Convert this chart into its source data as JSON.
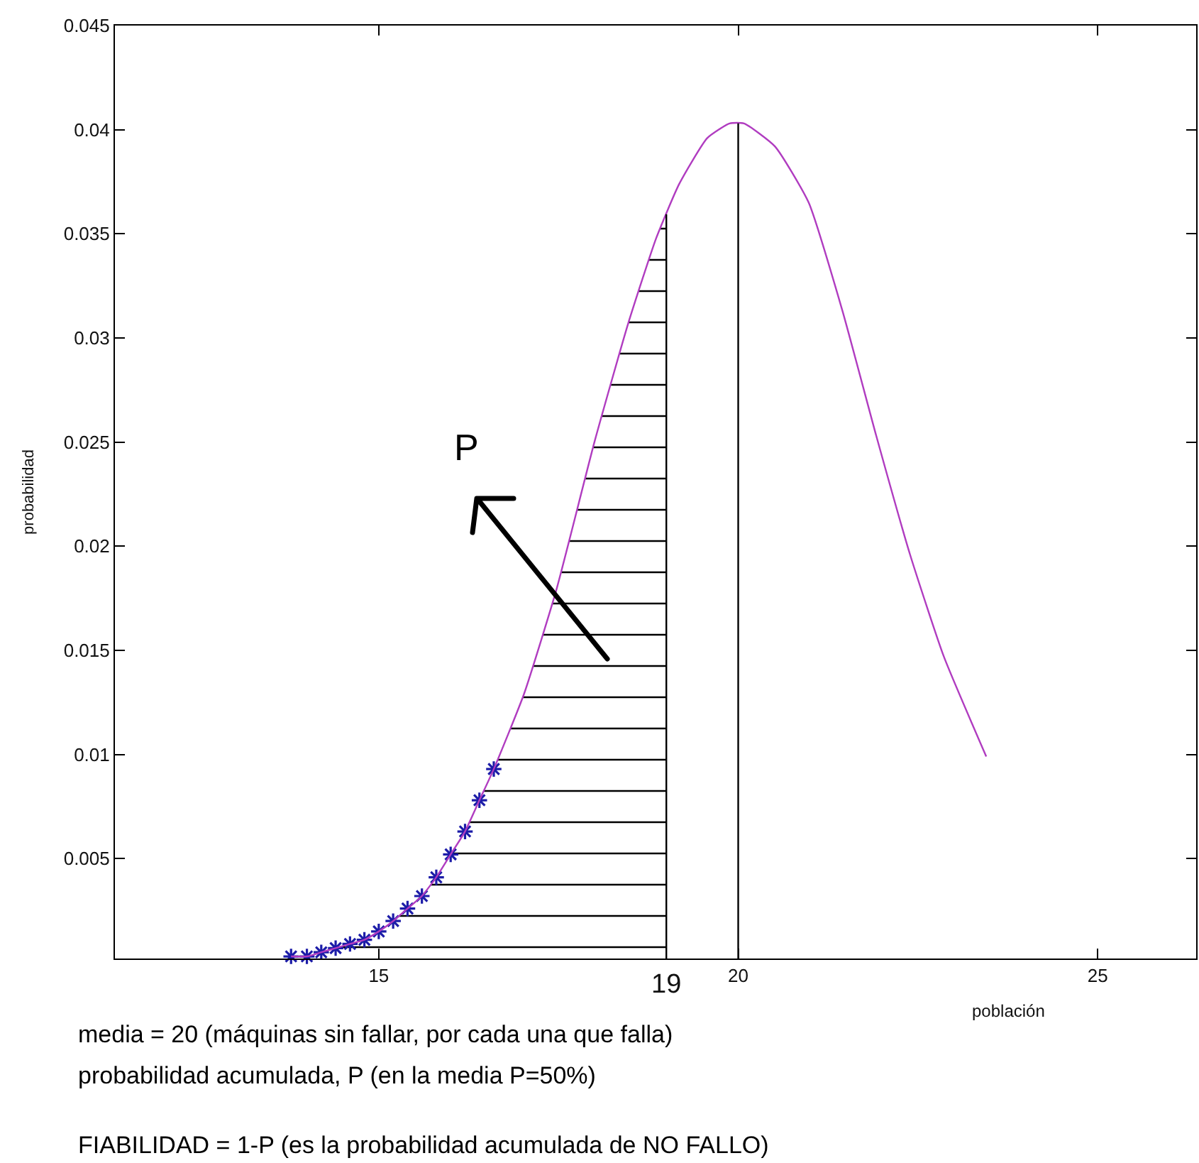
{
  "chart_data": {
    "type": "line",
    "xlabel": "población",
    "ylabel": "probabilidad",
    "xlim": [
      11.33,
      26.37
    ],
    "ylim": [
      0.0002,
      0.045
    ],
    "xticks": [
      15,
      20,
      25
    ],
    "yticks": [
      0.005,
      0.01,
      0.015,
      0.02,
      0.025,
      0.03,
      0.035,
      0.04,
      0.045
    ],
    "series": [
      {
        "type": "area",
        "color": "#000000",
        "x": [
          13.78,
          14.0,
          14.2,
          14.4,
          14.6,
          14.8,
          15.0,
          15.2,
          15.4,
          15.6,
          15.8,
          16.0,
          16.2,
          16.4,
          16.6,
          17.02,
          17.47,
          18.0,
          18.47,
          18.86,
          19.0
        ],
        "values": [
          0.0003,
          0.0003,
          0.0005,
          0.0007,
          0.0009,
          0.0011,
          0.0015,
          0.002,
          0.0026,
          0.0032,
          0.0041,
          0.0052,
          0.0063,
          0.0078,
          0.0093,
          0.0129,
          0.0179,
          0.025,
          0.0307,
          0.0348,
          0.036
        ]
      },
      {
        "color": "#b03cc0",
        "marker": "none",
        "x": [
          13.78,
          14.0,
          14.2,
          14.4,
          14.6,
          14.8,
          15.0,
          15.2,
          15.4,
          15.6,
          15.8,
          16.0,
          16.2,
          16.4,
          16.6,
          17.02,
          17.47,
          18.0,
          18.47,
          18.86,
          19.18,
          19.57,
          19.88,
          20.08,
          20.51,
          20.98,
          21.45,
          21.92,
          22.39,
          22.86,
          23.45
        ],
        "values": [
          0.0003,
          0.0003,
          0.0005,
          0.0007,
          0.0009,
          0.0011,
          0.0015,
          0.002,
          0.0026,
          0.0032,
          0.0041,
          0.0052,
          0.0063,
          0.0078,
          0.0093,
          0.0129,
          0.0179,
          0.025,
          0.0307,
          0.0348,
          0.0374,
          0.0396,
          0.0403,
          0.0403,
          0.0392,
          0.0365,
          0.0313,
          0.0253,
          0.0196,
          0.0147,
          0.0099
        ]
      },
      {
        "type": "scatter",
        "color": "#1c1ca8",
        "marker": "cross",
        "x": [
          13.78,
          14.0,
          14.2,
          14.4,
          14.6,
          14.8,
          15.0,
          15.2,
          15.4,
          15.6,
          15.8,
          16.0,
          16.2,
          16.4,
          16.6
        ],
        "values": [
          0.0003,
          0.0003,
          0.0005,
          0.0007,
          0.0009,
          0.0011,
          0.0015,
          0.002,
          0.0026,
          0.0032,
          0.0041,
          0.0052,
          0.0063,
          0.0078,
          0.0093
        ]
      }
    ],
    "ref_lines": [
      {
        "axis": "x",
        "value": 19,
        "label": "19"
      },
      {
        "axis": "x",
        "value": 20
      }
    ],
    "annotations": [
      "P",
      "media = 20 (máquinas sin fallar, por cada una que falla)",
      "probabilidad acumulada, P (en la media P=50%)",
      "FIABILIDAD = 1-P (es la probabilidad acumulada de NO FALLO)"
    ]
  }
}
